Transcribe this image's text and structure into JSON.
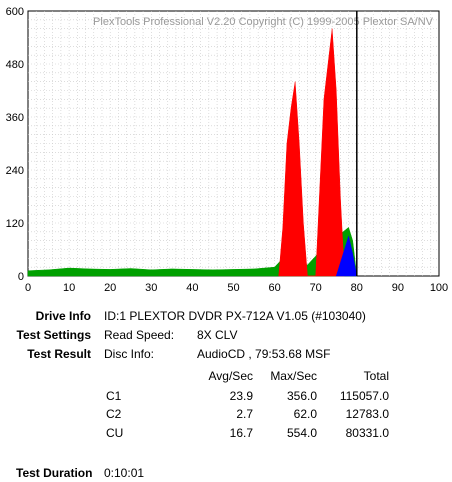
{
  "chart_data": {
    "type": "area",
    "title": "PlexTools Professional V2.20 Copyright (C) 1999-2005 Plextor SA/NV",
    "xlim": [
      0,
      100
    ],
    "ylim": [
      0,
      600
    ],
    "xticks": [
      "0",
      "10",
      "20",
      "30",
      "40",
      "50",
      "60",
      "70",
      "80",
      "90",
      "100"
    ],
    "yticks": [
      "0",
      "120",
      "240",
      "360",
      "480",
      "600"
    ],
    "grid": true,
    "marker_x": 80,
    "colors": {
      "C1": "#00a000",
      "C2": "#ff0000",
      "CU": "#0000ff",
      "marker": "#000000"
    },
    "series": [
      {
        "name": "C1",
        "x": [
          0,
          5,
          10,
          15,
          20,
          25,
          30,
          35,
          40,
          45,
          50,
          55,
          60,
          62,
          64,
          66,
          68,
          70,
          72,
          74,
          76,
          78,
          79,
          80
        ],
        "values": [
          12,
          14,
          18,
          16,
          15,
          17,
          14,
          16,
          15,
          14,
          15,
          16,
          20,
          40,
          55,
          30,
          25,
          45,
          70,
          85,
          95,
          110,
          80,
          0
        ]
      },
      {
        "name": "C2",
        "x": [
          61,
          62,
          63,
          64,
          65,
          66,
          67,
          68,
          70,
          71,
          72,
          73,
          74,
          75,
          76,
          77
        ],
        "values": [
          0,
          110,
          300,
          380,
          440,
          300,
          120,
          0,
          0,
          200,
          400,
          480,
          560,
          420,
          180,
          0
        ]
      },
      {
        "name": "CU",
        "x": [
          75,
          76,
          77,
          78,
          79,
          80
        ],
        "values": [
          0,
          30,
          60,
          90,
          50,
          0
        ]
      }
    ]
  },
  "info": {
    "drive_info_label": "Drive Info",
    "drive_info_value": "ID:1 PLEXTOR DVDR PX-712A V1.05 (#103040)",
    "test_settings_label": "Test Settings",
    "read_speed_label": "Read Speed:",
    "read_speed_value": "8X CLV",
    "test_result_label": "Test Result",
    "disc_info_label": "Disc Info:",
    "disc_info_value": "AudioCD , 79:53.68 MSF",
    "table": {
      "headers": [
        "Avg/Sec",
        "Max/Sec",
        "Total"
      ],
      "rows": [
        {
          "name": "C1",
          "avg": "23.9",
          "max": "356.0",
          "total": "115057.0"
        },
        {
          "name": "C2",
          "avg": "2.7",
          "max": "62.0",
          "total": "12783.0"
        },
        {
          "name": "CU",
          "avg": "16.7",
          "max": "554.0",
          "total": "80331.0"
        }
      ]
    },
    "test_duration_label": "Test Duration",
    "test_duration_value": "0:10:01"
  }
}
